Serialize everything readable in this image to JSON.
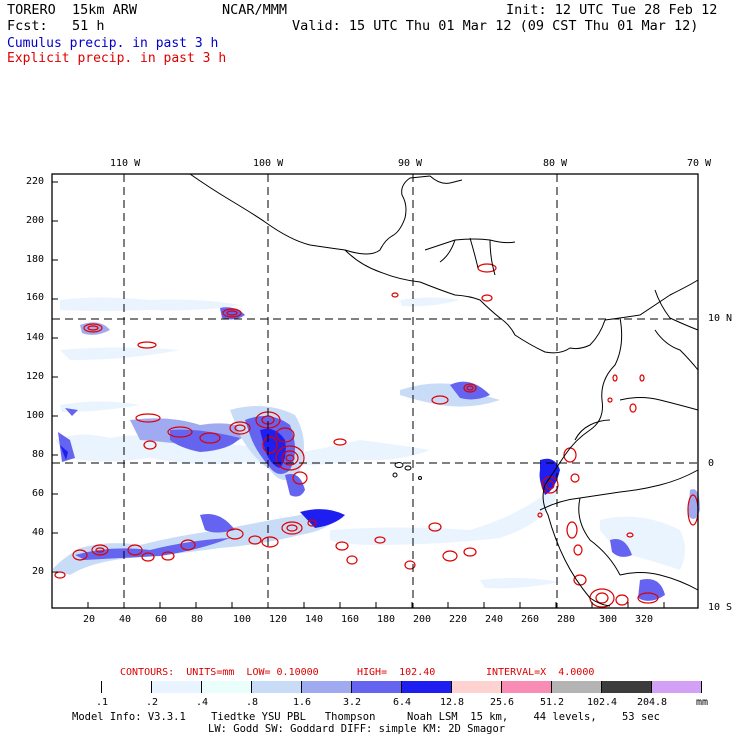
{
  "header": {
    "model": "TORERO  15km ARW",
    "org": "NCAR/MMM",
    "init": "Init: 12 UTC Tue 28 Feb 12",
    "fcst": "Fcst:   51 h",
    "valid": "Valid: 15 UTC Thu 01 Mar 12 (09 CST Thu 01 Mar 12)",
    "legend_cumulus": "Cumulus precip. in past 3 h",
    "legend_explicit": "Explicit precip. in past 3 h"
  },
  "colors": {
    "cumulus": "#0000cc",
    "explicit": "#dd0000"
  },
  "map": {
    "lon_labels": [
      "110 W",
      "100 W",
      "90 W",
      "80 W",
      "70 W"
    ],
    "lat_labels": [
      "10 N",
      "0",
      "10 S"
    ],
    "y_ticks": [
      "220",
      "200",
      "180",
      "160",
      "140",
      "120",
      "100",
      "80",
      "60",
      "40",
      "20"
    ],
    "x_ticks": [
      "20",
      "40",
      "60",
      "80",
      "100",
      "120",
      "140",
      "160",
      "180",
      "200",
      "220",
      "240",
      "260",
      "280",
      "300",
      "320"
    ]
  },
  "contours": {
    "label": "CONTOURS:  UNITS=mm  LOW= 0.10000",
    "high": "HIGH=  102.40",
    "interval": "INTERVAL=X  4.0000"
  },
  "colorbar": {
    "labels": [
      ".1",
      ".2",
      ".4",
      ".8",
      "1.6",
      "3.2",
      "6.4",
      "12.8",
      "25.6",
      "51.2",
      "102.4",
      "204.8"
    ],
    "unit": "mm",
    "colors": [
      "#ffffff",
      "#ffffff",
      "#e8f4ff",
      "#eafffb",
      "#c8dcf8",
      "#a0aaf0",
      "#6464f0",
      "#1e1ef0",
      "#ffd2d2",
      "#f88cb4",
      "#b4b4b4",
      "#3c3c3c",
      "#d2a0f5"
    ]
  },
  "footer": {
    "line1": "Model Info: V3.3.1    Tiedtke YSU PBL   Thompson     Noah LSM  15 km,    44 levels,    53 sec",
    "line2": "LW: Godd SW: Goddard DIFF: simple KM: 2D Smagor"
  }
}
